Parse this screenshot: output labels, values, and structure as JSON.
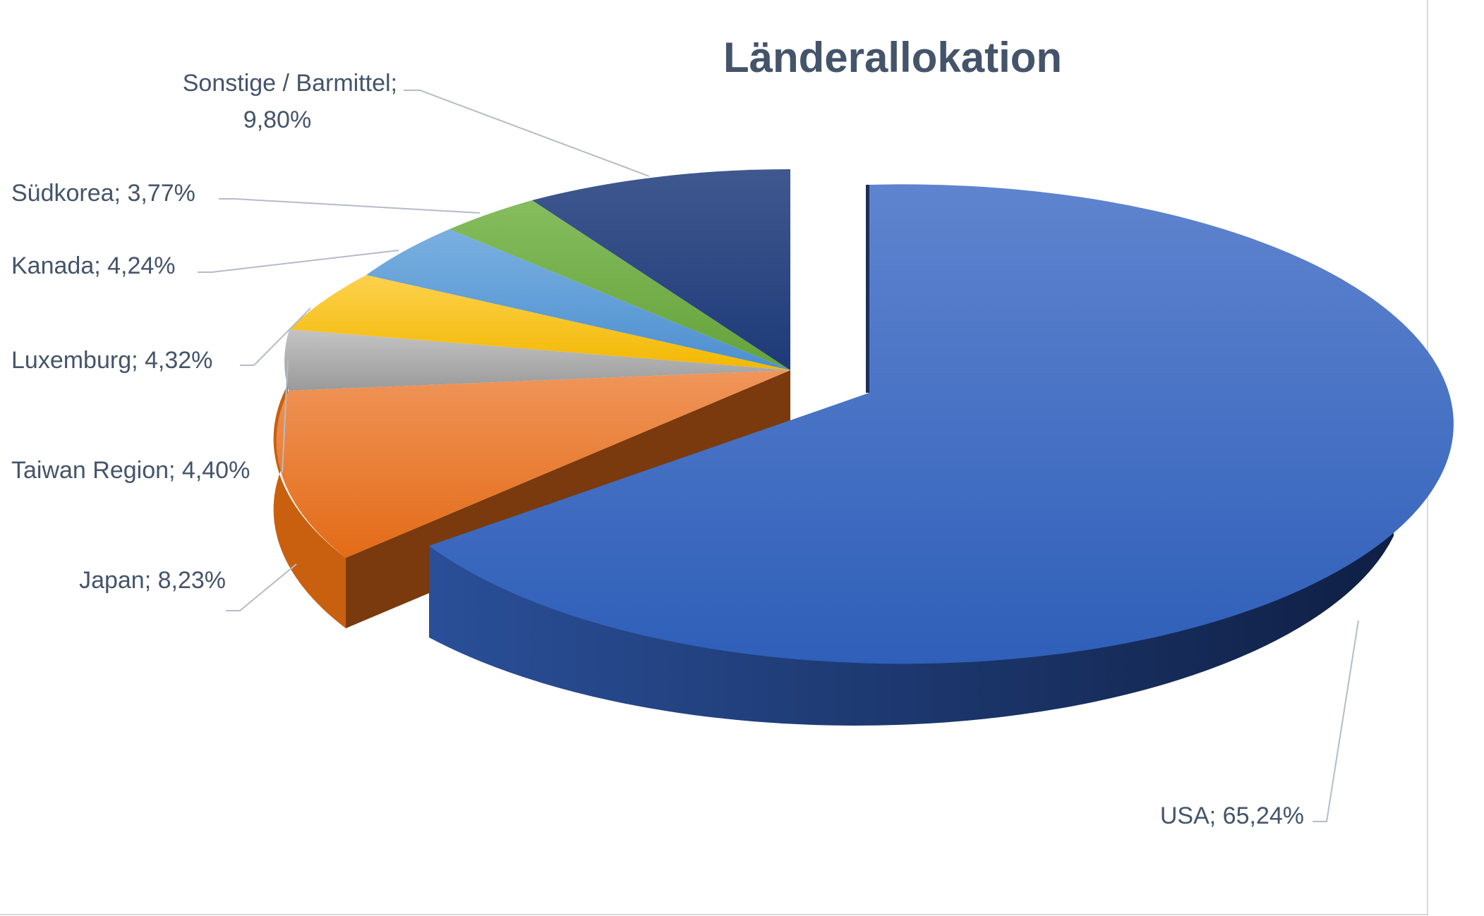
{
  "chart_data": {
    "type": "pie",
    "style": "3d-exploded",
    "title": "Länderallokation",
    "slices": [
      {
        "name": "USA",
        "value": 65.24,
        "label": "USA; 65,24%",
        "color": "#3a6cc6"
      },
      {
        "name": "Japan",
        "value": 8.23,
        "label": "Japan; 8,23%",
        "color": "#ed7d31"
      },
      {
        "name": "Taiwan Region",
        "value": 4.4,
        "label": "Taiwan Region; 4,40%",
        "color": "#a5a5a5"
      },
      {
        "name": "Luxemburg",
        "value": 4.32,
        "label": "Luxemburg; 4,32%",
        "color": "#fbc20a"
      },
      {
        "name": "Kanada",
        "value": 4.24,
        "label": "Kanada; 4,24%",
        "color": "#5b9bd5"
      },
      {
        "name": "Südkorea",
        "value": 3.77,
        "label": "Südkorea; 3,77%",
        "color": "#70ad47"
      },
      {
        "name": "Sonstige / Barmittel",
        "value": 9.8,
        "label_lines": [
          "Sonstige / Barmittel;",
          "9,80%"
        ],
        "color": "#27417a"
      }
    ],
    "exploded": "USA",
    "legend": "none"
  }
}
